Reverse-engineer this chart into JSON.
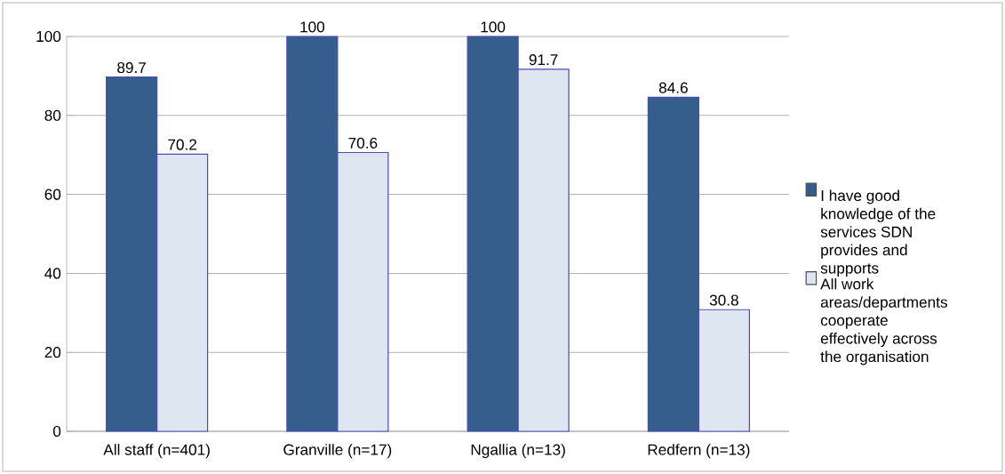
{
  "chart_data": {
    "type": "bar",
    "categories": [
      "All staff (n=401)",
      "Granville (n=17)",
      "Ngallia (n=13)",
      "Redfern (n=13)"
    ],
    "series": [
      {
        "name": "I have good knowledge of the services SDN provides and supports",
        "color": "#355e8d",
        "values": [
          89.7,
          100,
          100,
          84.6
        ]
      },
      {
        "name": "All work areas/departments cooperate effectively across the organisation",
        "color": "#dde6f1",
        "values": [
          70.2,
          70.6,
          91.7,
          30.8
        ]
      }
    ],
    "ylim": [
      0,
      100
    ],
    "yticks": [
      0,
      20,
      40,
      60,
      80,
      100
    ],
    "grid": "y",
    "legend": "right",
    "data_labels": true
  }
}
